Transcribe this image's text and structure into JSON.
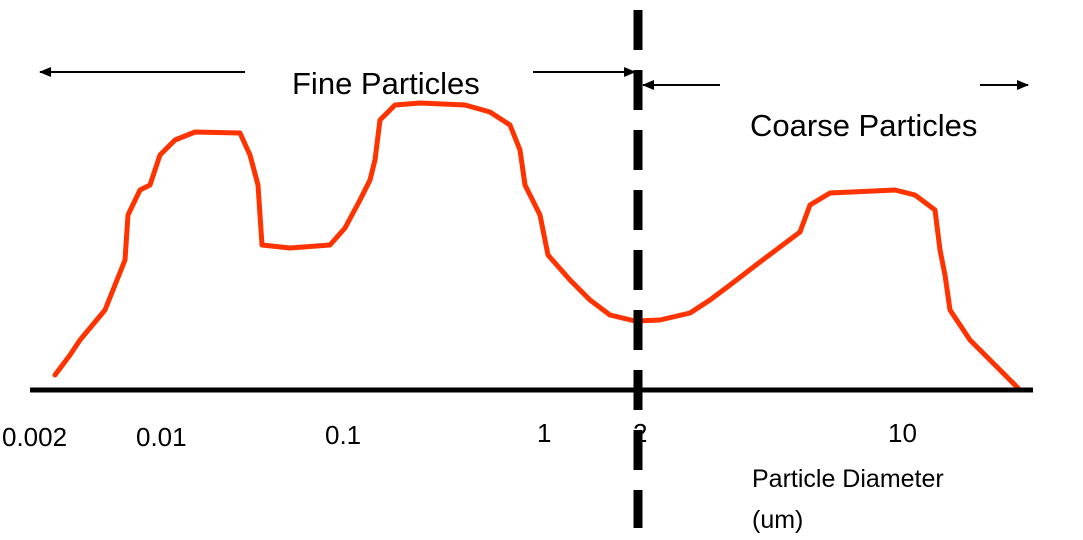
{
  "labels": {
    "fine": "Fine Particles",
    "coarse": "Coarse Particles"
  },
  "axis": {
    "ticks": [
      "0.002",
      "0.01",
      "0.1",
      "1",
      "2",
      "10"
    ],
    "title_line1": "Particle Diameter",
    "title_line2": "(um)"
  }
}
